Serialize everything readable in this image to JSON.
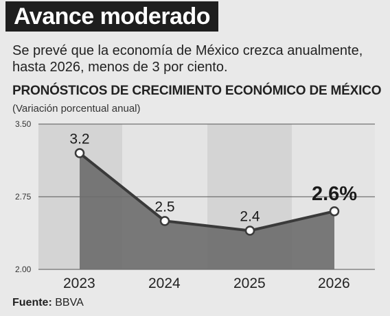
{
  "header": {
    "title": "Avance moderado",
    "subtitle": "Se prevé que la economía de México crezca anualmente, hasta 2026, menos de 3 por ciento."
  },
  "chart_data": {
    "type": "area",
    "title": "PRONÓSTICOS DE CRECIMIENTO ECONÓMICO DE MÉXICO",
    "subtitle": "(Variación porcentual anual)",
    "categories": [
      "2023",
      "2024",
      "2025",
      "2026"
    ],
    "values": [
      3.2,
      2.5,
      2.4,
      2.6
    ],
    "data_labels": [
      "3.2",
      "2.5",
      "2.4",
      "2.6%"
    ],
    "ylim": [
      2.0,
      3.5
    ],
    "yticks": [
      "3.50",
      "2.75",
      "2.00"
    ],
    "grid": true,
    "colors": {
      "area": "#6b6b6b",
      "line": "#3a3a3a",
      "marker_fill": "#ffffff",
      "band_dark": "#d4d4d4",
      "band_light": "#e4e4e4"
    }
  },
  "footer": {
    "source_label": "Fuente:",
    "source_value": "BBVA"
  }
}
